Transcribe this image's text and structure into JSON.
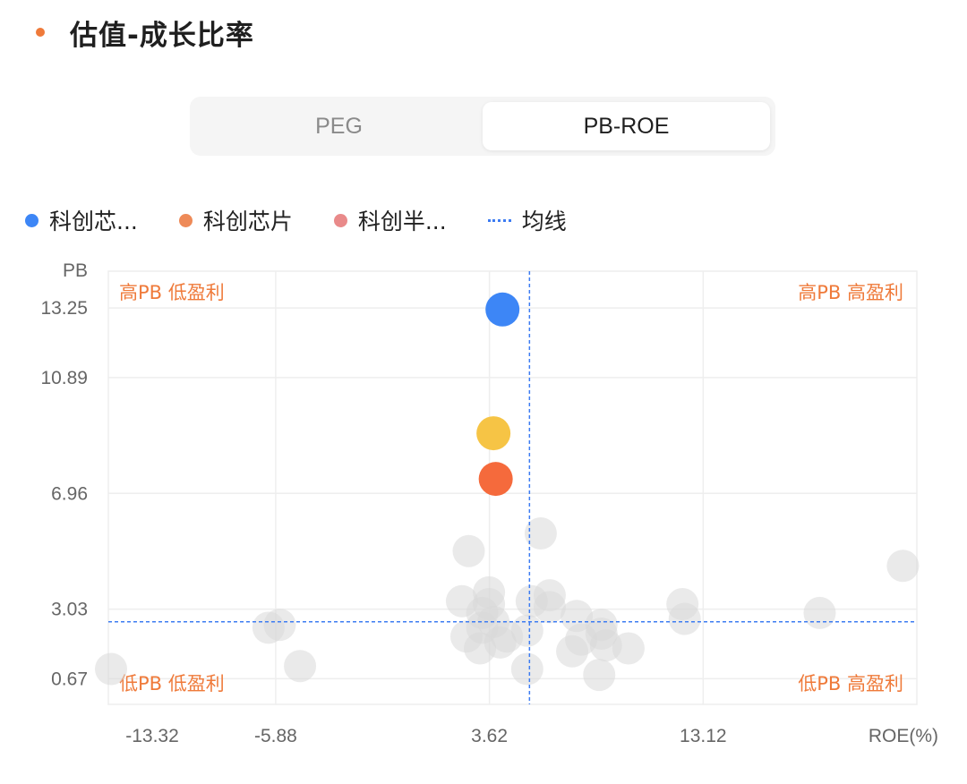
{
  "header": {
    "title": "估值-成长比率",
    "accent_color": "#ef7a3a"
  },
  "tabs": [
    {
      "label": "PEG",
      "active": false
    },
    {
      "label": "PB-ROE",
      "active": true
    }
  ],
  "legend": [
    {
      "label": "科创芯...",
      "color": "#3d86f6",
      "kind": "dot"
    },
    {
      "label": "科创芯片",
      "color": "#ee8a58",
      "kind": "dot"
    },
    {
      "label": "科创半...",
      "color": "#e98a8a",
      "kind": "dot"
    },
    {
      "label": "均线",
      "color": "#3d7cf2",
      "kind": "dash"
    }
  ],
  "chart_data": {
    "type": "scatter",
    "xlabel": "ROE(%)",
    "ylabel": "PB",
    "xlim": [
      -13.32,
      22.62
    ],
    "ylim": [
      -0.2,
      14.5
    ],
    "x_ticks": [
      -13.32,
      -5.88,
      3.62,
      13.12
    ],
    "x_tick_labels": [
      "-13.32",
      "-5.88",
      "3.62",
      "13.12"
    ],
    "y_ticks": [
      0.67,
      3.03,
      6.96,
      10.89,
      13.25
    ],
    "y_tick_labels": [
      "0.67",
      "3.03",
      "6.96",
      "10.89",
      "13.25"
    ],
    "quadrant_labels": {
      "top_left": "高PB 低盈利",
      "top_right": "高PB 高盈利",
      "bottom_left": "低PB 低盈利",
      "bottom_right": "低PB 高盈利"
    },
    "mean_lines": {
      "x": 5.4,
      "y": 2.6
    },
    "highlighted": [
      {
        "x": 4.2,
        "y": 13.2,
        "color": "#3d86f6"
      },
      {
        "x": 3.8,
        "y": 9.0,
        "color": "#f6c445"
      },
      {
        "x": 3.9,
        "y": 7.45,
        "color": "#f56a3c"
      }
    ],
    "others_color": "#d9d9d9",
    "others": [
      {
        "x": -13.2,
        "y": 1.0
      },
      {
        "x": -5.7,
        "y": 2.5
      },
      {
        "x": -4.8,
        "y": 1.1
      },
      {
        "x": -6.2,
        "y": 2.4
      },
      {
        "x": 2.7,
        "y": 5.0
      },
      {
        "x": 3.6,
        "y": 3.6
      },
      {
        "x": 2.4,
        "y": 3.3
      },
      {
        "x": 3.3,
        "y": 2.9
      },
      {
        "x": 3.6,
        "y": 3.2
      },
      {
        "x": 2.6,
        "y": 2.1
      },
      {
        "x": 3.2,
        "y": 1.7
      },
      {
        "x": 3.3,
        "y": 2.4
      },
      {
        "x": 3.8,
        "y": 2.6
      },
      {
        "x": 4.1,
        "y": 1.9
      },
      {
        "x": 4.4,
        "y": 2.1
      },
      {
        "x": 5.3,
        "y": 2.3
      },
      {
        "x": 5.5,
        "y": 3.3
      },
      {
        "x": 6.3,
        "y": 3.5
      },
      {
        "x": 6.3,
        "y": 3.1
      },
      {
        "x": 7.5,
        "y": 2.8
      },
      {
        "x": 7.3,
        "y": 1.6
      },
      {
        "x": 7.7,
        "y": 2.0
      },
      {
        "x": 8.6,
        "y": 2.2
      },
      {
        "x": 8.8,
        "y": 1.8
      },
      {
        "x": 9.8,
        "y": 1.7
      },
      {
        "x": 8.6,
        "y": 2.5
      },
      {
        "x": 5.3,
        "y": 1.0
      },
      {
        "x": 8.5,
        "y": 0.8
      },
      {
        "x": 5.9,
        "y": 5.6
      },
      {
        "x": 12.2,
        "y": 3.2
      },
      {
        "x": 12.3,
        "y": 2.7
      },
      {
        "x": 18.3,
        "y": 2.9
      },
      {
        "x": 22.0,
        "y": 4.5
      }
    ]
  }
}
